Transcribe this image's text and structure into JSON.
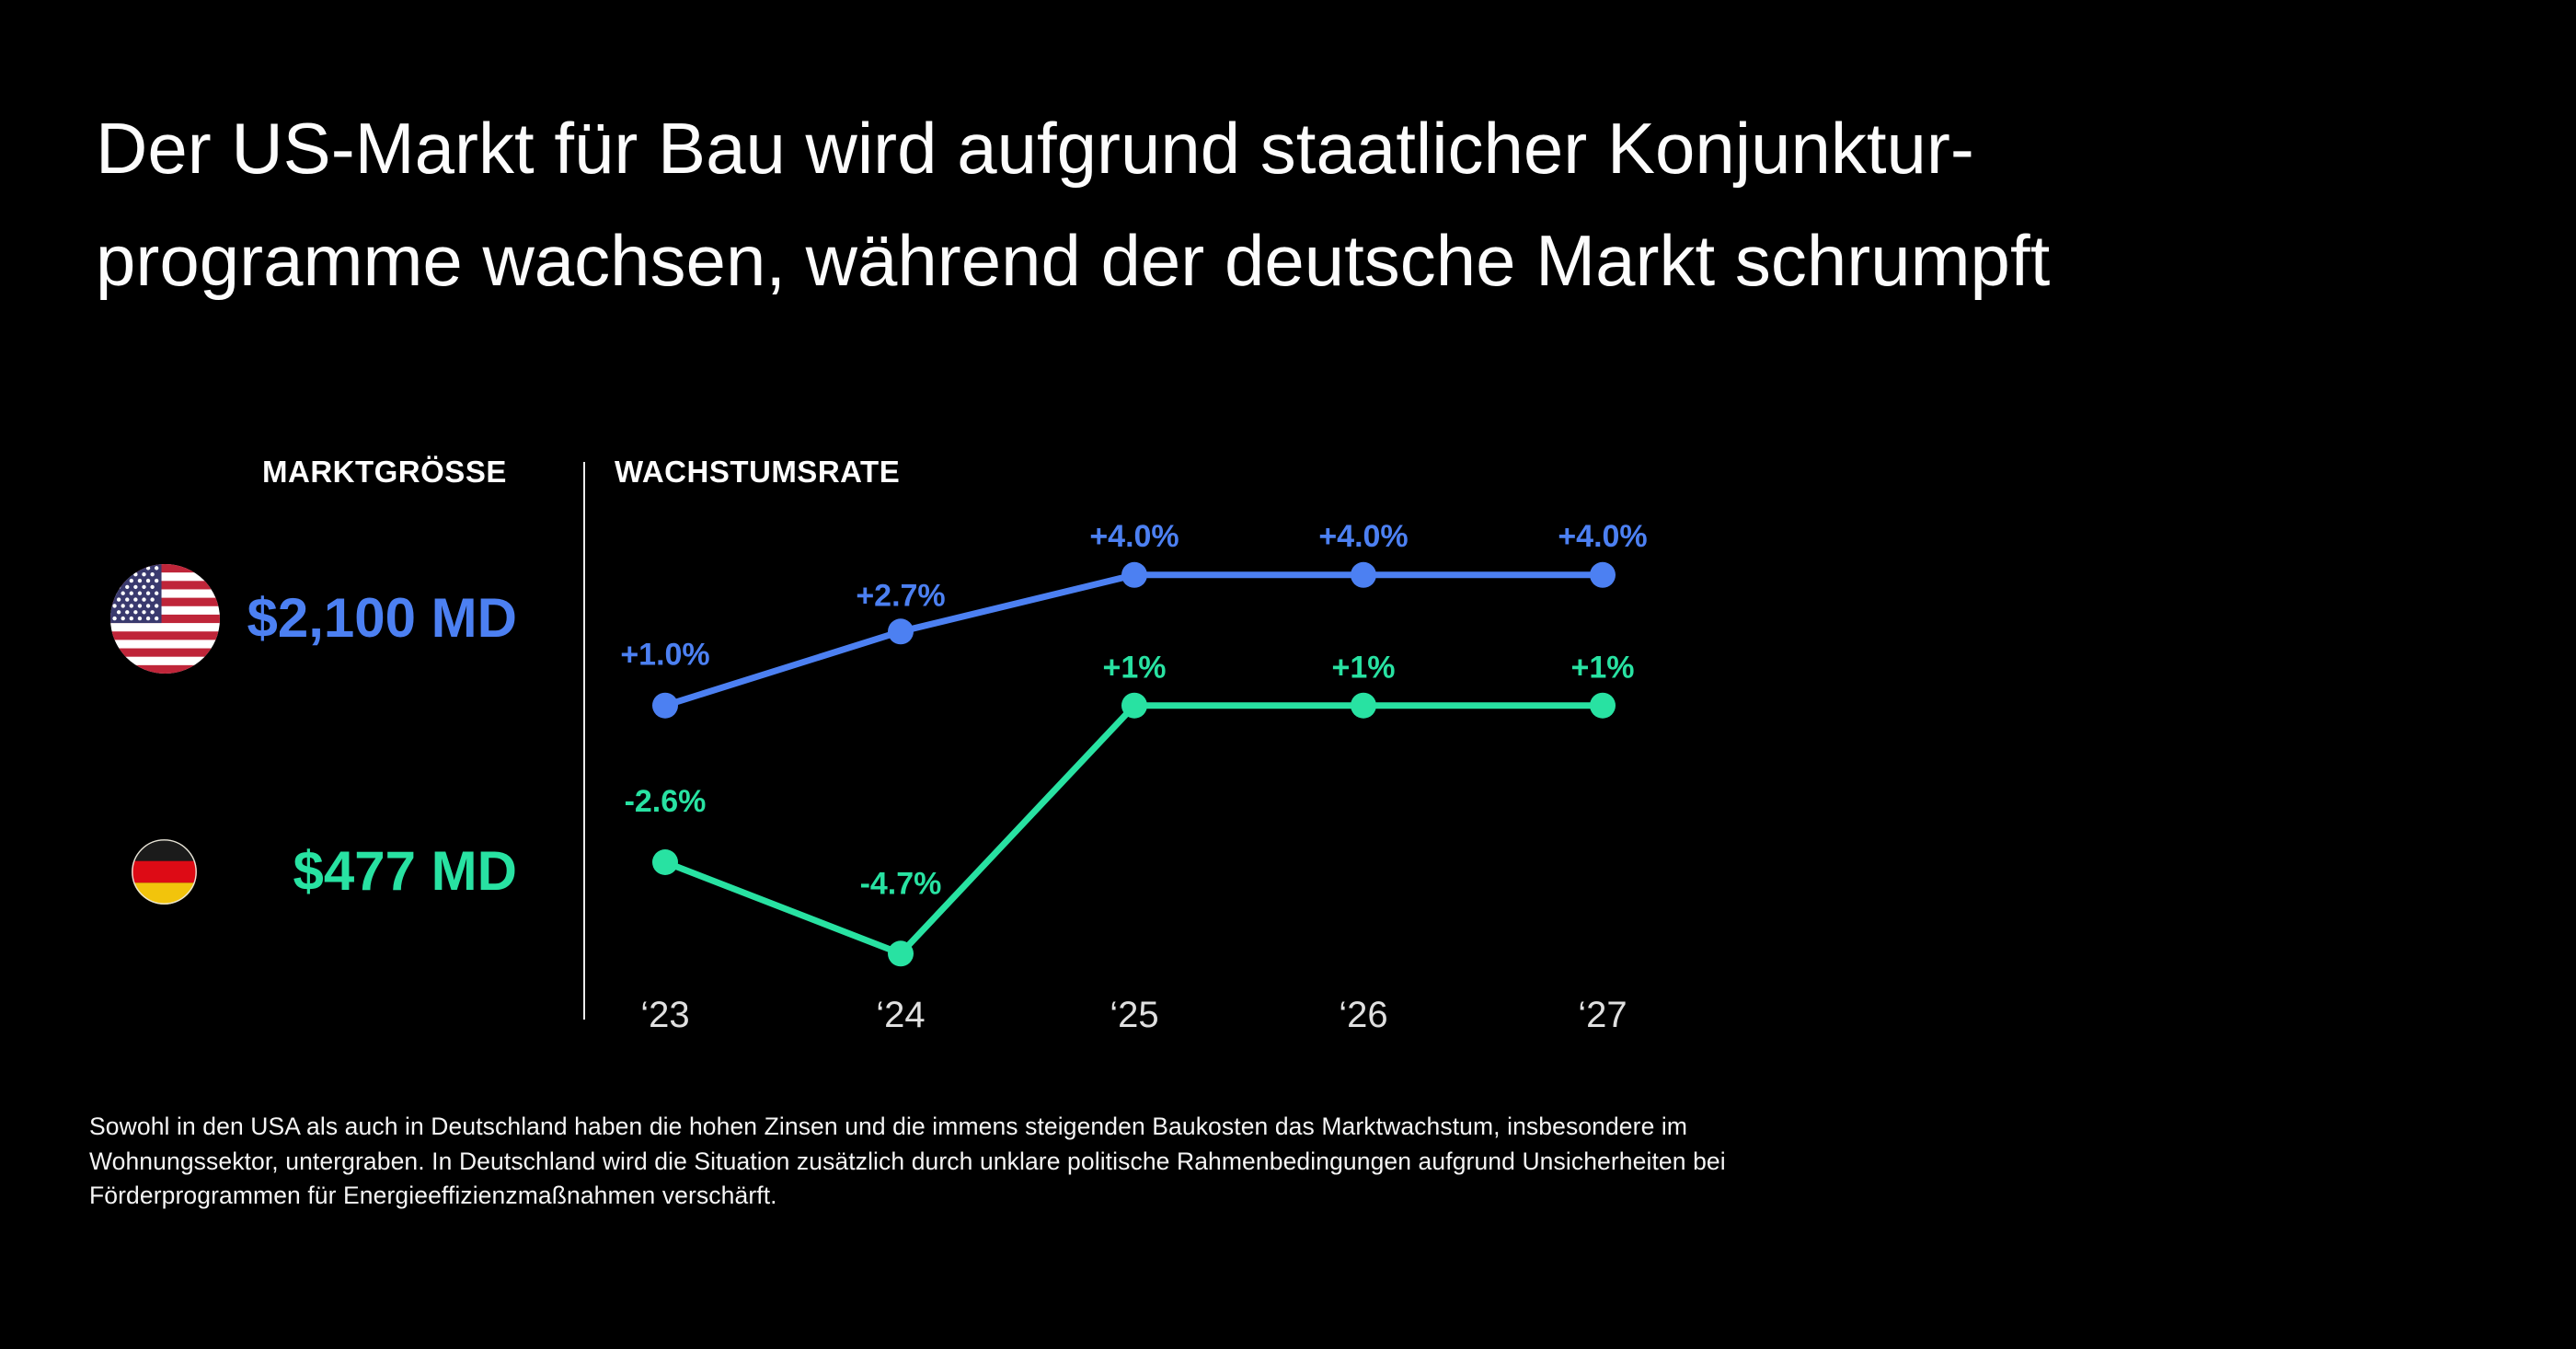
{
  "title": {
    "line1": "Der US-Markt für Bau wird aufgrund staatlicher Konjunktur-",
    "line2": "programme wachsen, während der deutsche Markt schrumpft"
  },
  "columns": {
    "market_size_label": "MARKTGRÖSSE",
    "growth_rate_label": "WACHSTUMSRATE"
  },
  "markets": [
    {
      "name": "USA",
      "flag_icon": "us-flag-icon",
      "value": "$2,100 MD",
      "color": "#4C80F2"
    },
    {
      "name": "Deutschland",
      "flag_icon": "de-flag-icon",
      "value": "$477 MD",
      "color": "#28E2A2"
    }
  ],
  "chart_data": {
    "type": "line",
    "title": "Wachstumsrate",
    "categories": [
      "‘23",
      "‘24",
      "‘25",
      "‘26",
      "‘27"
    ],
    "series": [
      {
        "name": "USA",
        "color": "#4C80F2",
        "values": [
          1.0,
          2.7,
          4.0,
          4.0,
          4.0
        ],
        "labels": [
          "+1.0%",
          "+2.7%",
          "+4.0%",
          "+4.0%",
          "+4.0%"
        ]
      },
      {
        "name": "Deutschland",
        "color": "#28E2A2",
        "values": [
          -2.6,
          -4.7,
          1,
          1,
          1
        ],
        "labels": [
          "-2.6%",
          "-4.7%",
          "+1%",
          "+1%",
          "+1%"
        ]
      }
    ],
    "unit": "%",
    "ylim": [
      -5.5,
      5.0
    ],
    "grid": false,
    "legend": "none",
    "axis_label_color": "#E0E0E0"
  },
  "footnote": "Sowohl in den USA als auch in Deutschland haben die hohen Zinsen und die immens steigenden Baukosten das Marktwachstum, insbesondere im Wohnungssektor, untergraben. In Deutschland wird die Situation zusätzlich durch unklare politische Rahmenbedingungen aufgrund Unsicherheiten bei Förderprogrammen für Energieeffizienzmaßnahmen verschärft."
}
